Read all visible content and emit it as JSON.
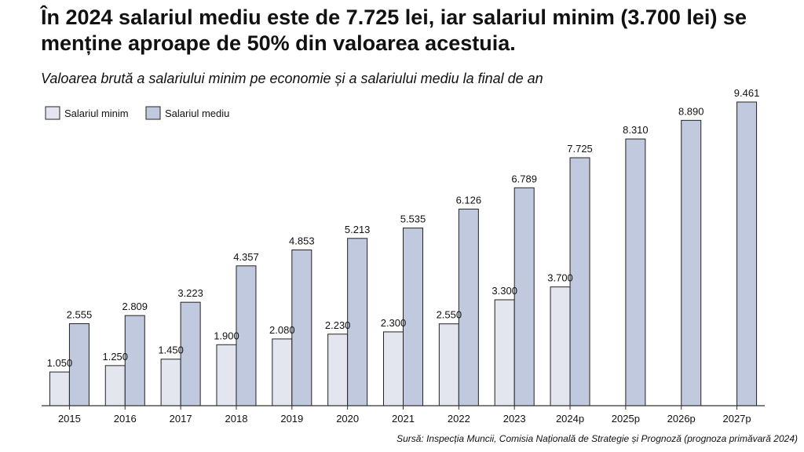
{
  "page": {
    "title": "În 2024 salariul mediu este de 7.725 lei, iar salariul minim (3.700 lei) se menține aproape de 50% din valoarea acestuia.",
    "subtitle": "Valoarea brută a salariului minim pe economie și a salariului mediu la final de an",
    "source": "Sursă: Inspecția Muncii, Comisia Națională de Strategie și Prognoză (prognoza primăvară 2024)"
  },
  "colors": {
    "min_fill": "#e3e6ef",
    "avg_fill": "#c0c9de",
    "outline": "#222222",
    "axis": "#333333"
  },
  "chart_data": {
    "type": "bar",
    "title": "Valoarea brută a salariului minim pe economie și a salariului mediu la final de an",
    "xlabel": "",
    "ylabel": "",
    "ylim": [
      0,
      10000
    ],
    "grid": false,
    "legend_position": "top-left",
    "categories": [
      "2015",
      "2016",
      "2017",
      "2018",
      "2019",
      "2020",
      "2021",
      "2022",
      "2023",
      "2024p",
      "2025p",
      "2026p",
      "2027p"
    ],
    "series": [
      {
        "name": "Salariul minim",
        "values": [
          1050,
          1250,
          1450,
          1900,
          2080,
          2230,
          2300,
          2550,
          3300,
          3700,
          null,
          null,
          null
        ],
        "labels": [
          "1.050",
          "1.250",
          "1.450",
          "1.900",
          "2.080",
          "2.230",
          "2.300",
          "2.550",
          "3.300",
          "3.700",
          null,
          null,
          null
        ]
      },
      {
        "name": "Salariul mediu",
        "values": [
          2555,
          2809,
          3223,
          4357,
          4853,
          5213,
          5535,
          6126,
          6789,
          7725,
          8310,
          8890,
          9461
        ],
        "labels": [
          "2.555",
          "2.809",
          "3.223",
          "4.357",
          "4.853",
          "5.213",
          "5.535",
          "6.126",
          "6.789",
          "7.725",
          "8.310",
          "8.890",
          "9.461"
        ]
      }
    ]
  }
}
